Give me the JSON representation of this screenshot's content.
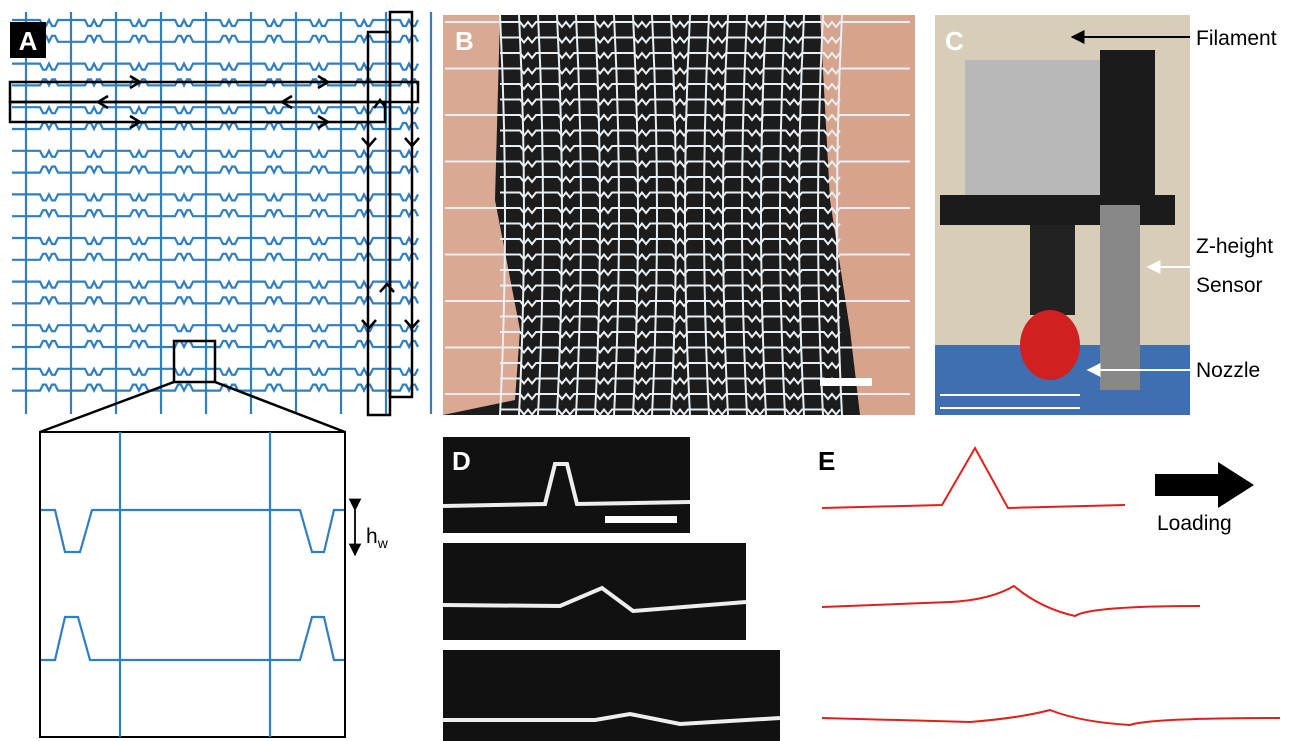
{
  "panels": {
    "a": {
      "label": "A",
      "annotation": {
        "symbol": "h",
        "subscript": "w"
      }
    },
    "b": {
      "label": "B"
    },
    "c": {
      "label": "C",
      "annotations": [
        "Filament",
        "Z-height",
        "Sensor",
        "Nozzle"
      ]
    },
    "d": {
      "label": "D"
    },
    "e": {
      "label": "E",
      "annotation": "Loading"
    }
  }
}
